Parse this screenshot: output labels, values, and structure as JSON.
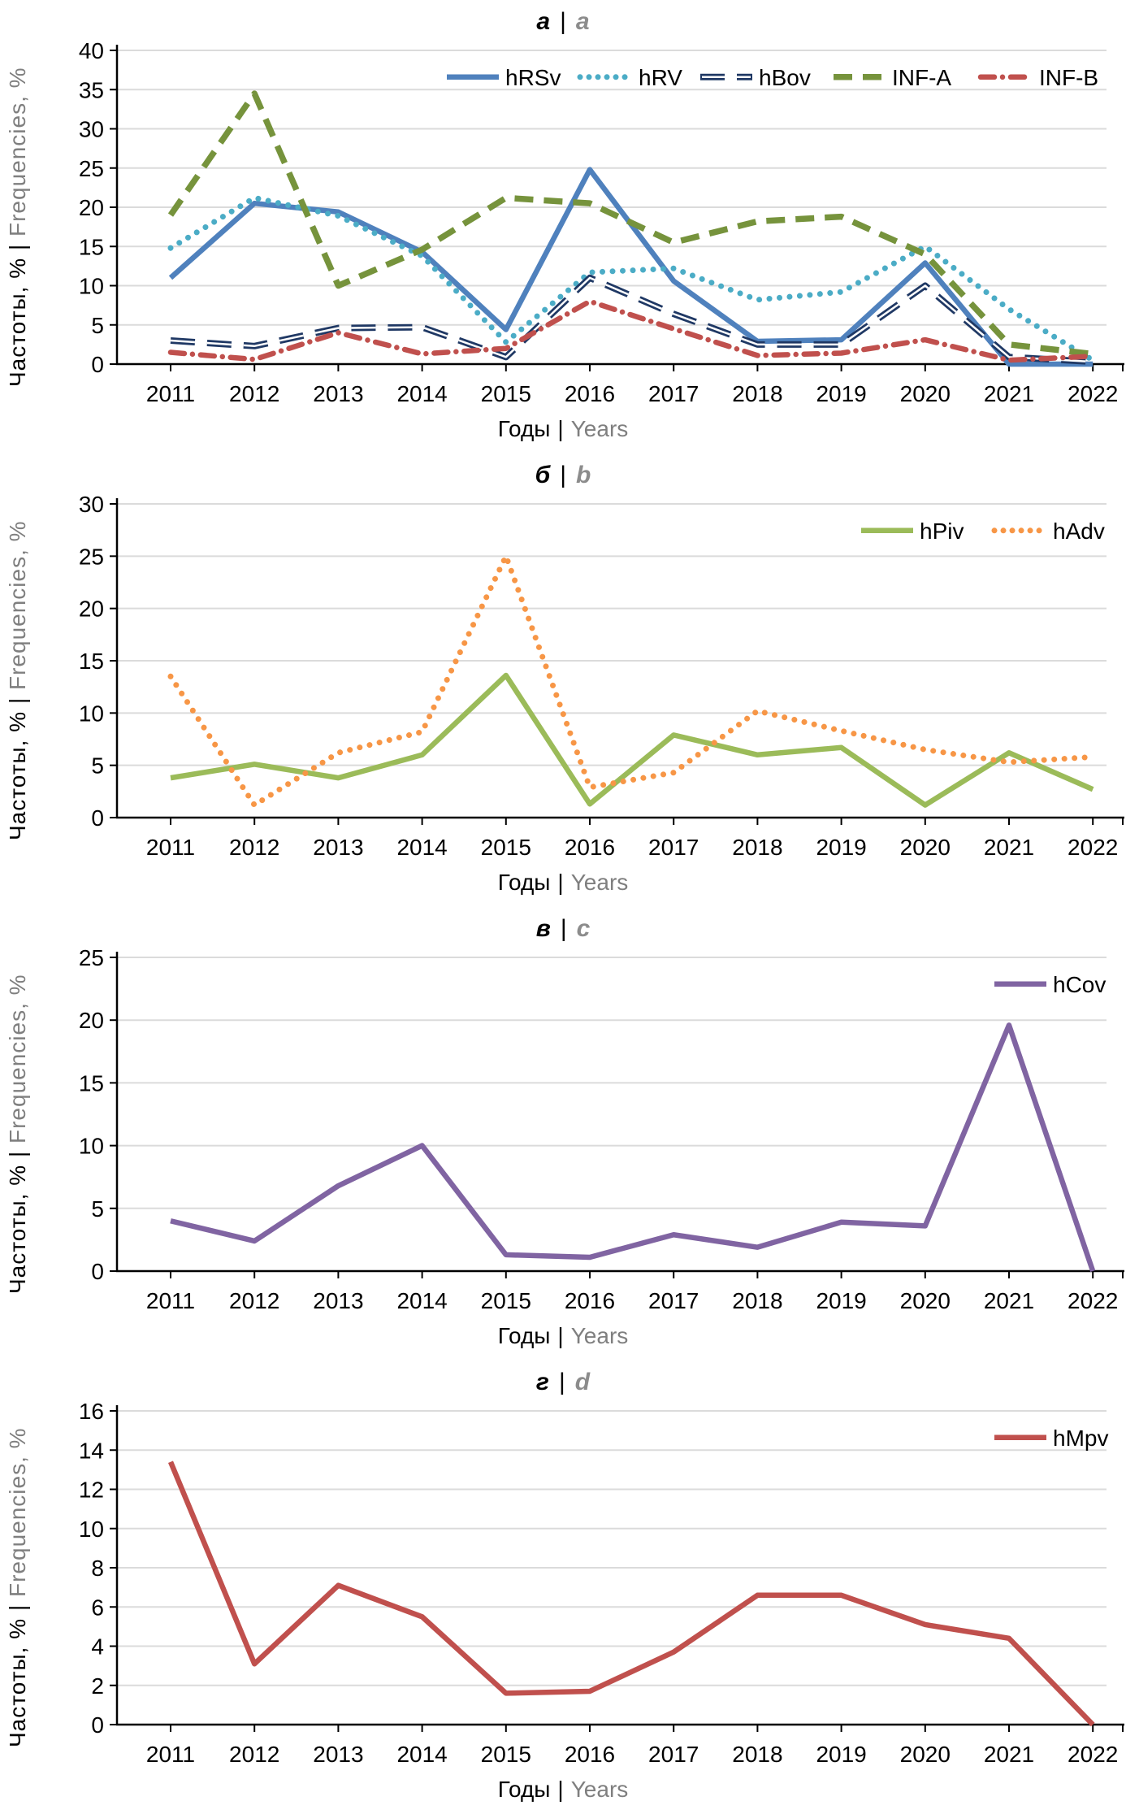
{
  "colors": {
    "axis": "#000000",
    "gridline": "#DBDBDB",
    "title_secondary": "#8C8C8C",
    "label_secondary": "#7F7F7F",
    "tick_label": "#000000"
  },
  "chart_data": [
    {
      "id": "a",
      "type": "line",
      "title_ru": "а",
      "title_sep": "|",
      "title_en": "a",
      "ylabel_ru": "Частоты, %",
      "ylabel_sep": "|",
      "ylabel_en": "Frequencies, %",
      "xlabel_ru": "Годы",
      "xlabel_sep": "|",
      "xlabel_en": "Years",
      "years": [
        "2011",
        "2012",
        "2013",
        "2014",
        "2015",
        "2016",
        "2017",
        "2018",
        "2019",
        "2020",
        "2021",
        "2022"
      ],
      "ylim": [
        0,
        40
      ],
      "yticks": [
        0,
        5,
        10,
        15,
        20,
        25,
        30,
        35,
        40
      ],
      "grid": true,
      "legend_position": "inside-top-right",
      "series": [
        {
          "name": "hRSv",
          "color": "#4F81BD",
          "style": "solid",
          "values": [
            11,
            20.5,
            19.4,
            14.3,
            4.4,
            24.8,
            10.6,
            2.9,
            3.1,
            12.9,
            0,
            0
          ]
        },
        {
          "name": "hRV",
          "color": "#4BACC6",
          "style": "dotted",
          "values": [
            14.8,
            21.2,
            18.9,
            13.8,
            2.8,
            11.7,
            12.2,
            8.2,
            9.2,
            15,
            7,
            0.5
          ]
        },
        {
          "name": "hBov",
          "color": "#1F3864",
          "style": "tube",
          "values": [
            3,
            2.3,
            4.6,
            4.7,
            0.9,
            11,
            6.4,
            2.5,
            2.5,
            10,
            0.9,
            0.3
          ]
        },
        {
          "name": "INF-A",
          "color": "#76933C",
          "style": "dashed",
          "values": [
            19,
            34.5,
            10,
            14.6,
            21.2,
            20.5,
            15.5,
            18.2,
            18.8,
            14,
            2.5,
            1.3
          ]
        },
        {
          "name": "INF-B",
          "color": "#C0504D",
          "style": "dashdot",
          "values": [
            1.5,
            0.6,
            4,
            1.3,
            2,
            8,
            4.5,
            1.1,
            1.4,
            3.1,
            0.5,
            1
          ]
        }
      ]
    },
    {
      "id": "b",
      "type": "line",
      "title_ru": "б",
      "title_sep": "|",
      "title_en": "b",
      "ylabel_ru": "Частоты, %",
      "ylabel_sep": "|",
      "ylabel_en": "Frequencies, %",
      "xlabel_ru": "Годы",
      "xlabel_sep": "|",
      "xlabel_en": "Years",
      "years": [
        "2011",
        "2012",
        "2013",
        "2014",
        "2015",
        "2016",
        "2017",
        "2018",
        "2019",
        "2020",
        "2021",
        "2022"
      ],
      "ylim": [
        0,
        30
      ],
      "yticks": [
        0,
        5,
        10,
        15,
        20,
        25,
        30
      ],
      "grid": true,
      "legend_position": "inside-top-right",
      "series": [
        {
          "name": "hPiv",
          "color": "#9BBB59",
          "style": "solid",
          "values": [
            3.8,
            5.1,
            3.8,
            6,
            13.6,
            1.3,
            7.9,
            6,
            6.7,
            1.2,
            6.2,
            2.7
          ]
        },
        {
          "name": "hAdv",
          "color": "#F79646",
          "style": "dotted",
          "values": [
            13.5,
            1.2,
            6.2,
            8.2,
            25,
            2.9,
            4.3,
            10.2,
            8.3,
            6.5,
            5.3,
            5.8
          ]
        }
      ]
    },
    {
      "id": "c",
      "type": "line",
      "title_ru": "в",
      "title_sep": "|",
      "title_en": "c",
      "ylabel_ru": "Частоты, %",
      "ylabel_sep": "|",
      "ylabel_en": "Frequencies, %",
      "xlabel_ru": "Годы",
      "xlabel_sep": "|",
      "xlabel_en": "Years",
      "years": [
        "2011",
        "2012",
        "2013",
        "2014",
        "2015",
        "2016",
        "2017",
        "2018",
        "2019",
        "2020",
        "2021",
        "2022"
      ],
      "ylim": [
        0,
        25
      ],
      "yticks": [
        0,
        5,
        10,
        15,
        20,
        25
      ],
      "grid": true,
      "legend_position": "inside-top-right",
      "series": [
        {
          "name": "hCov",
          "color": "#8064A2",
          "style": "solid",
          "values": [
            4,
            2.4,
            6.8,
            10,
            1.3,
            1.1,
            2.9,
            1.9,
            3.9,
            3.6,
            19.6,
            0
          ]
        }
      ]
    },
    {
      "id": "d",
      "type": "line",
      "title_ru": "г",
      "title_sep": "|",
      "title_en": "d",
      "ylabel_ru": "Частоты, %",
      "ylabel_sep": "|",
      "ylabel_en": "Frequencies, %",
      "xlabel_ru": "Годы",
      "xlabel_sep": "|",
      "xlabel_en": "Years",
      "years": [
        "2011",
        "2012",
        "2013",
        "2014",
        "2015",
        "2016",
        "2017",
        "2018",
        "2019",
        "2020",
        "2021",
        "2022"
      ],
      "ylim": [
        0,
        16
      ],
      "yticks": [
        0,
        2,
        4,
        6,
        8,
        10,
        12,
        14,
        16
      ],
      "grid": true,
      "legend_position": "inside-top-right",
      "series": [
        {
          "name": "hMpv",
          "color": "#C0504D",
          "style": "solid",
          "values": [
            13.4,
            3.1,
            7.1,
            5.5,
            1.6,
            1.7,
            3.7,
            6.6,
            6.6,
            5.1,
            4.4,
            0
          ]
        }
      ]
    }
  ]
}
